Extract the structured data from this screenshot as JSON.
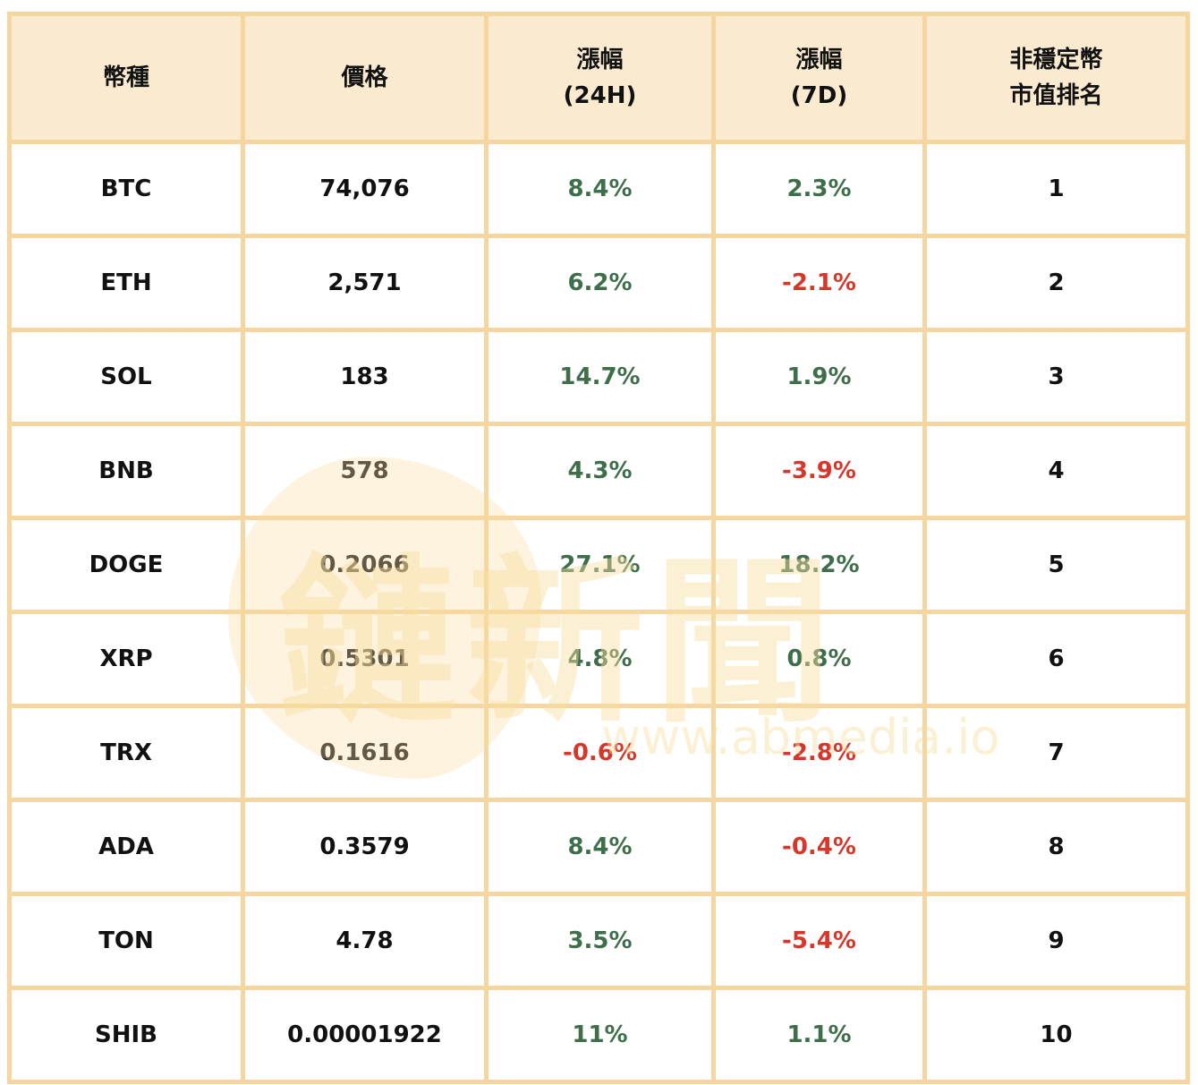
{
  "headers": {
    "coin": "幣種",
    "price": "價格",
    "chg24_line1": "漲幅",
    "chg24_line2": "(24H)",
    "chg7_line1": "漲幅",
    "chg7_line2": "(7D)",
    "rank_line1": "非穩定幣",
    "rank_line2": "市值排名"
  },
  "rows": [
    {
      "coin": "BTC",
      "price": "74,076",
      "chg24": "8.4%",
      "chg7": "2.3%",
      "rank": "1"
    },
    {
      "coin": "ETH",
      "price": "2,571",
      "chg24": "6.2%",
      "chg7": "-2.1%",
      "rank": "2"
    },
    {
      "coin": "SOL",
      "price": "183",
      "chg24": "14.7%",
      "chg7": "1.9%",
      "rank": "3"
    },
    {
      "coin": "BNB",
      "price": "578",
      "chg24": "4.3%",
      "chg7": "-3.9%",
      "rank": "4"
    },
    {
      "coin": "DOGE",
      "price": "0.2066",
      "chg24": "27.1%",
      "chg7": "18.2%",
      "rank": "5"
    },
    {
      "coin": "XRP",
      "price": "0.5301",
      "chg24": "4.8%",
      "chg7": "0.8%",
      "rank": "6"
    },
    {
      "coin": "TRX",
      "price": "0.1616",
      "chg24": "-0.6%",
      "chg7": "-2.8%",
      "rank": "7"
    },
    {
      "coin": "ADA",
      "price": "0.3579",
      "chg24": "8.4%",
      "chg7": "-0.4%",
      "rank": "8"
    },
    {
      "coin": "TON",
      "price": "4.78",
      "chg24": "3.5%",
      "chg7": "-5.4%",
      "rank": "9"
    },
    {
      "coin": "SHIB",
      "price": "0.00001922",
      "chg24": "11%",
      "chg7": "1.1%",
      "rank": "10"
    }
  ],
  "colors": {
    "positive": "#3f6e4b",
    "negative": "#d6372b",
    "header_bg": "#faead0",
    "border": "#f5d5a0"
  },
  "watermark": {
    "logo_text": "鏈新聞",
    "url": "www.abmedia.io"
  }
}
